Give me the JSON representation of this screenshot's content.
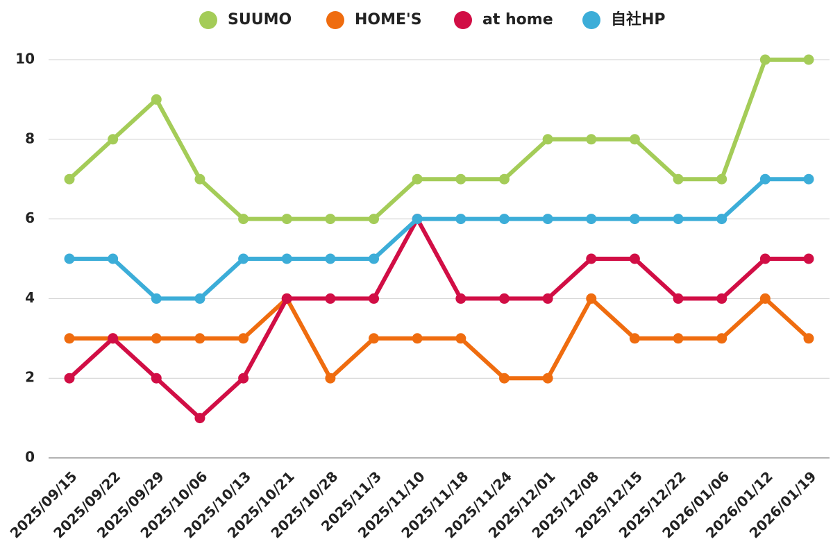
{
  "chart_data": {
    "type": "line",
    "categories": [
      "2025/09/15",
      "2025/09/22",
      "2025/09/29",
      "2025/10/06",
      "2025/10/13",
      "2025/10/21",
      "2025/10/28",
      "2025/11/3",
      "2025/11/10",
      "2025/11/18",
      "2025/11/24",
      "2025/12/01",
      "2025/12/08",
      "2025/12/15",
      "2025/12/22",
      "2026/01/06",
      "2026/01/12",
      "2026/01/19"
    ],
    "series": [
      {
        "name": "SUUMO",
        "color": "#a4cc58",
        "values": [
          7,
          8,
          9,
          7,
          6,
          6,
          6,
          6,
          7,
          7,
          7,
          8,
          8,
          8,
          7,
          7,
          10,
          10
        ]
      },
      {
        "name": "HOME'S",
        "color": "#ef6c0f",
        "values": [
          3,
          3,
          3,
          3,
          3,
          4,
          2,
          3,
          3,
          3,
          2,
          2,
          4,
          3,
          3,
          3,
          4,
          3
        ]
      },
      {
        "name": "at home",
        "color": "#d10e45",
        "values": [
          2,
          3,
          2,
          1,
          2,
          4,
          4,
          4,
          6,
          4,
          4,
          4,
          5,
          5,
          4,
          4,
          5,
          5
        ]
      },
      {
        "name": "自社HP",
        "color": "#3cadd8",
        "values": [
          5,
          5,
          4,
          4,
          5,
          5,
          5,
          5,
          6,
          6,
          6,
          6,
          6,
          6,
          6,
          6,
          7,
          7
        ]
      }
    ],
    "yticks": [
      0,
      2,
      4,
      6,
      8,
      10
    ],
    "ylim": [
      0,
      10
    ],
    "grid": true,
    "legend": "top-center",
    "title": "",
    "xlabel": "",
    "ylabel": ""
  }
}
